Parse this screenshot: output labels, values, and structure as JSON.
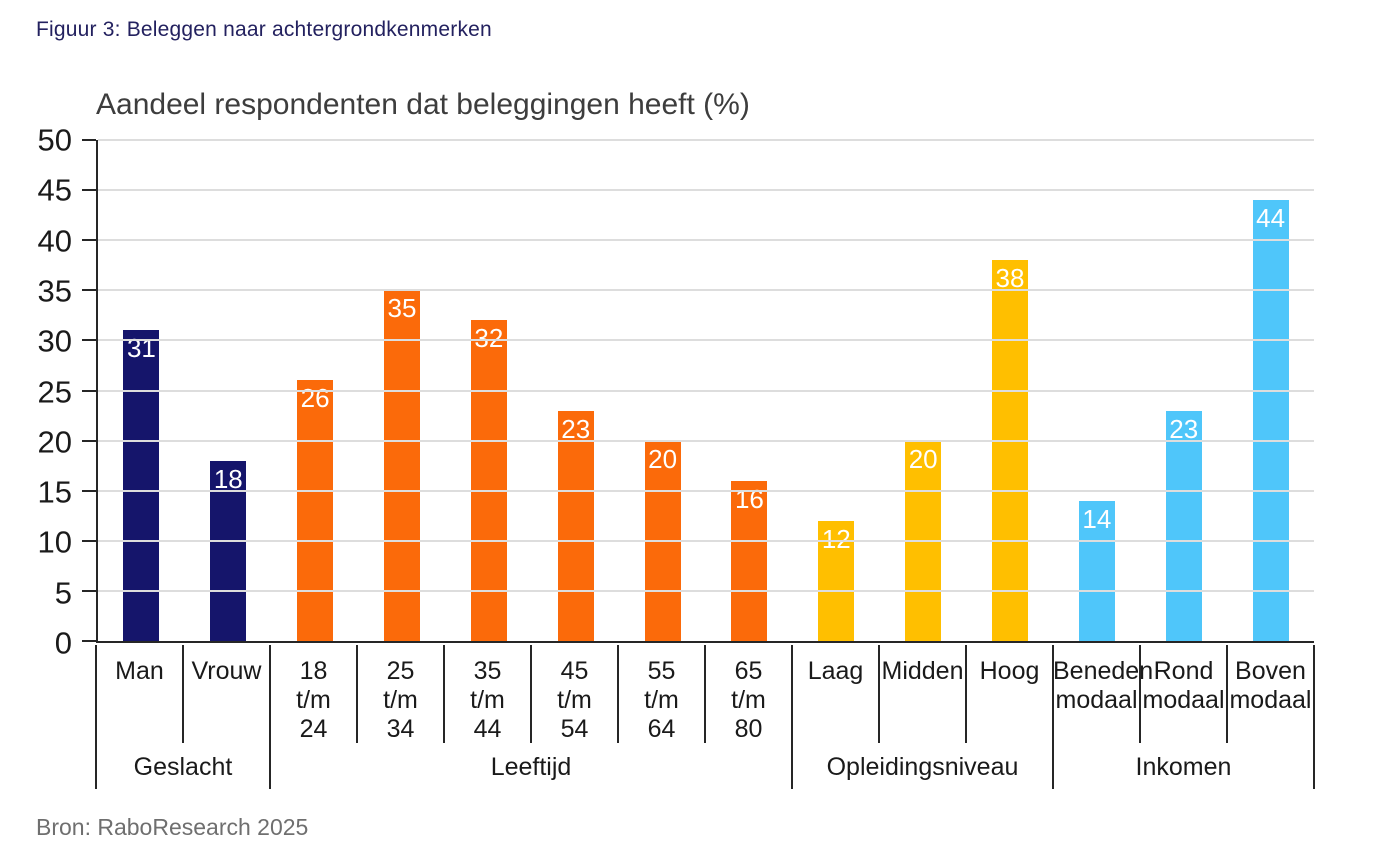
{
  "figure_caption": "Figuur 3: Beleggen naar achtergrondkenmerken",
  "source": "Bron: RaboResearch 2025",
  "chart_data": {
    "type": "bar",
    "title": "Aandeel respondenten dat beleggingen heeft (%)",
    "xlabel": "",
    "ylabel": "",
    "ylim": [
      0,
      50
    ],
    "ytick_step": 5,
    "yticks": [
      0,
      5,
      10,
      15,
      20,
      25,
      30,
      35,
      40,
      45,
      50
    ],
    "grid": true,
    "legend": "none",
    "value_label_position": "inside-top-white",
    "axis_color": "#262626",
    "gridline_color": "#DDDDDD",
    "groups": [
      {
        "label": "Geslacht",
        "color": "#15156B",
        "categories": [
          {
            "label": "Man",
            "display": "Man",
            "value": 31
          },
          {
            "label": "Vrouw",
            "display": "Vrouw",
            "value": 18
          }
        ]
      },
      {
        "label": "Leeftijd",
        "color": "#FB6A0A",
        "categories": [
          {
            "label": "18 t/m 24",
            "display": "18\nt/m\n24",
            "value": 26
          },
          {
            "label": "25 t/m 34",
            "display": "25\nt/m\n34",
            "value": 35
          },
          {
            "label": "35 t/m 44",
            "display": "35\nt/m\n44",
            "value": 32
          },
          {
            "label": "45 t/m 54",
            "display": "45\nt/m\n54",
            "value": 23
          },
          {
            "label": "55 t/m 64",
            "display": "55\nt/m\n64",
            "value": 20
          },
          {
            "label": "65 t/m 80",
            "display": "65\nt/m\n80",
            "value": 16
          }
        ]
      },
      {
        "label": "Opleidingsniveau",
        "color": "#FFBF00",
        "categories": [
          {
            "label": "Laag",
            "display": "Laag",
            "value": 12
          },
          {
            "label": "Midden",
            "display": "Midden",
            "value": 20
          },
          {
            "label": "Hoog",
            "display": "Hoog",
            "value": 38
          }
        ]
      },
      {
        "label": "Inkomen",
        "color": "#4FC6FA",
        "categories": [
          {
            "label": "Beneden modaal",
            "display": "Beneden\nmodaal",
            "value": 14
          },
          {
            "label": "Rond modaal",
            "display": "Rond\nmodaal",
            "value": 23
          },
          {
            "label": "Boven modaal",
            "display": "Boven\nmodaal",
            "value": 44
          }
        ]
      }
    ]
  }
}
